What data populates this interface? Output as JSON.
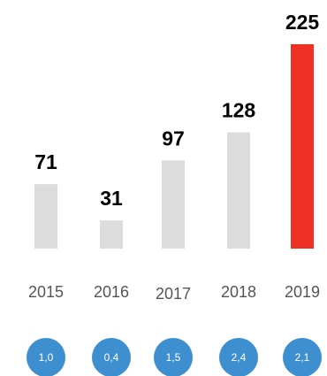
{
  "chart_data": {
    "type": "bar",
    "title": "",
    "xlabel": "",
    "ylabel": "",
    "ylim": [
      0,
      225
    ],
    "grid": false,
    "legend": "none",
    "categories": [
      "2015",
      "2016",
      "2017",
      "2018",
      "2019"
    ],
    "values": [
      71,
      31,
      97,
      128,
      225
    ],
    "value_labels": [
      "71",
      "31",
      "97",
      "128",
      "225"
    ],
    "secondary_values": [
      "1,0",
      "0,4",
      "1,5",
      "2,4",
      "2,1"
    ],
    "colors": {
      "bar": "#dcdcdc",
      "highlight_bar": "#ee3124",
      "circle": "#3e8fd0",
      "circle_text": "#ffffff",
      "year_text": "#555555"
    },
    "highlight_index": 4
  }
}
